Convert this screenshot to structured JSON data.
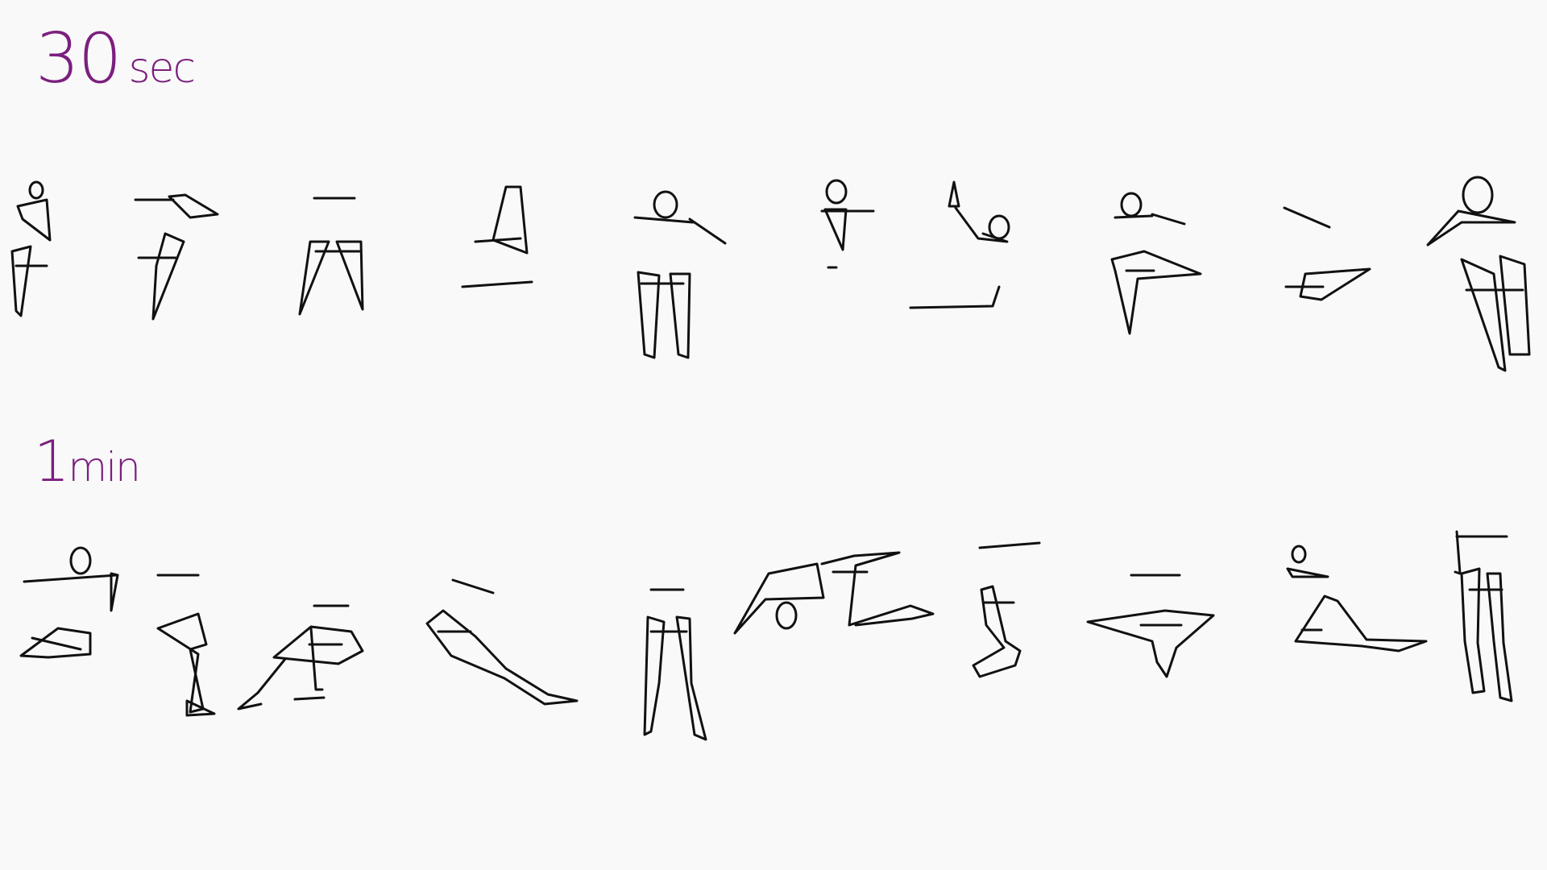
{
  "sections": [
    {
      "value": "30",
      "unit": "sec"
    },
    {
      "value": "1",
      "unit": "min"
    }
  ],
  "colors": {
    "background": "#f9f9f9",
    "label_ink": "#7b1f7e",
    "figure_ink": "#111111"
  }
}
